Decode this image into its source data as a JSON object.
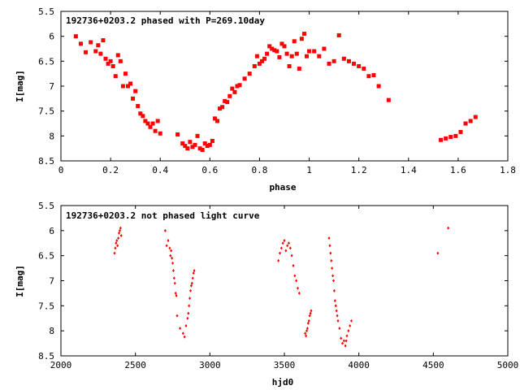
{
  "chart_data": [
    {
      "type": "scatter",
      "title": "192736+0203.2 phased with P=269.10day",
      "xlabel": "phase",
      "ylabel": "I[mag]",
      "xlim": [
        0,
        1.8
      ],
      "ylim": [
        5.5,
        8.5
      ],
      "y_inverted": true,
      "grid": false,
      "legend": "none",
      "marker": "filled-square",
      "color": "#ff0000",
      "xticks": [
        "0",
        "0.2",
        "0.4",
        "0.6",
        "0.8",
        "1",
        "1.2",
        "1.4",
        "1.6",
        "1.8"
      ],
      "yticks": [
        "5.5",
        "6",
        "6.5",
        "7",
        "7.5",
        "8",
        "8.5"
      ],
      "series": [
        {
          "x": [
            0.06,
            0.08,
            0.1,
            0.12,
            0.14,
            0.15,
            0.16,
            0.17,
            0.18,
            0.19,
            0.2,
            0.21,
            0.22,
            0.23,
            0.24,
            0.25,
            0.26,
            0.27,
            0.28,
            0.29,
            0.3,
            0.31,
            0.32,
            0.33,
            0.34,
            0.35,
            0.36,
            0.37,
            0.38,
            0.39,
            0.4,
            0.47,
            0.49,
            0.5,
            0.51,
            0.52,
            0.53,
            0.54,
            0.55,
            0.56,
            0.57,
            0.58,
            0.59,
            0.6,
            0.61,
            0.62,
            0.63,
            0.64,
            0.65,
            0.66,
            0.67,
            0.68,
            0.69,
            0.7,
            0.71,
            0.72,
            0.74,
            0.76,
            0.78,
            0.79,
            0.8,
            0.81,
            0.82,
            0.83,
            0.84,
            0.85,
            0.86,
            0.87,
            0.88,
            0.89,
            0.9,
            0.91,
            0.92,
            0.93,
            0.94,
            0.95,
            0.96,
            0.97,
            0.98,
            0.99,
            1.0,
            1.02,
            1.04,
            1.06,
            1.08,
            1.1,
            1.12,
            1.14,
            1.16,
            1.18,
            1.2,
            1.22,
            1.24,
            1.26,
            1.28,
            1.32,
            1.53,
            1.55,
            1.57,
            1.59,
            1.61,
            1.63,
            1.65,
            1.67
          ],
          "y": [
            6.0,
            6.15,
            6.32,
            6.12,
            6.3,
            6.18,
            6.35,
            6.08,
            6.45,
            6.55,
            6.5,
            6.6,
            6.8,
            6.38,
            6.5,
            7.0,
            6.75,
            7.0,
            6.95,
            7.25,
            7.1,
            7.4,
            7.55,
            7.6,
            7.7,
            7.75,
            7.82,
            7.75,
            7.9,
            7.7,
            7.95,
            7.97,
            8.15,
            8.2,
            8.25,
            8.12,
            8.22,
            8.18,
            8.0,
            8.25,
            8.28,
            8.15,
            8.2,
            8.18,
            8.1,
            7.65,
            7.7,
            7.45,
            7.42,
            7.3,
            7.32,
            7.2,
            7.05,
            7.12,
            7.0,
            6.98,
            6.85,
            6.75,
            6.6,
            6.4,
            6.55,
            6.5,
            6.45,
            6.35,
            6.2,
            6.25,
            6.28,
            6.3,
            6.42,
            6.15,
            6.2,
            6.35,
            6.6,
            6.4,
            6.1,
            6.35,
            6.65,
            6.05,
            5.95,
            6.4,
            6.3,
            6.3,
            6.4,
            6.25,
            6.55,
            6.5,
            5.98,
            6.45,
            6.5,
            6.55,
            6.6,
            6.65,
            6.8,
            6.78,
            7.0,
            7.28,
            8.08,
            8.05,
            8.02,
            8.0,
            7.92,
            7.75,
            7.7,
            7.62
          ]
        }
      ]
    },
    {
      "type": "scatter",
      "title": "192736+0203.2 not phased light curve",
      "xlabel": "hjd0",
      "ylabel": "I[mag]",
      "xlim": [
        2000,
        5000
      ],
      "ylim": [
        5.5,
        8.5
      ],
      "y_inverted": true,
      "grid": false,
      "legend": "none",
      "marker": "small-diamond",
      "color": "#ff0000",
      "xticks": [
        "2000",
        "2500",
        "3000",
        "3500",
        "4000",
        "4500",
        "5000"
      ],
      "yticks": [
        "5.5",
        "6",
        "6.5",
        "7",
        "7.5",
        "8",
        "8.5"
      ],
      "series": [
        {
          "x": [
            2360,
            2365,
            2370,
            2375,
            2380,
            2385,
            2390,
            2395,
            2400,
            2405,
            2700,
            2710,
            2720,
            2730,
            2735,
            2740,
            2745,
            2750,
            2755,
            2760,
            2765,
            2770,
            2775,
            2780,
            2800,
            2820,
            2830,
            2840,
            2850,
            2855,
            2860,
            2865,
            2870,
            2875,
            2880,
            2885,
            2890,
            2895,
            3460,
            3470,
            3480,
            3490,
            3500,
            3510,
            3520,
            3530,
            3540,
            3550,
            3560,
            3570,
            3580,
            3590,
            3600,
            3640,
            3645,
            3650,
            3655,
            3660,
            3665,
            3670,
            3675,
            3680,
            3800,
            3805,
            3810,
            3815,
            3820,
            3825,
            3830,
            3835,
            3840,
            3845,
            3850,
            3855,
            3860,
            3870,
            3880,
            3890,
            3900,
            3910,
            3915,
            3920,
            3930,
            3940,
            3950,
            4530,
            4600
          ],
          "y": [
            6.45,
            6.35,
            6.25,
            6.2,
            6.3,
            6.15,
            6.05,
            6.0,
            5.95,
            6.1,
            6.0,
            6.3,
            6.2,
            6.35,
            6.5,
            6.4,
            6.55,
            6.65,
            6.8,
            6.95,
            7.05,
            7.25,
            7.3,
            7.7,
            7.95,
            8.05,
            8.12,
            7.9,
            7.75,
            7.65,
            7.5,
            7.35,
            7.2,
            7.1,
            7.05,
            6.95,
            6.85,
            6.8,
            6.6,
            6.45,
            6.35,
            6.25,
            6.2,
            6.4,
            6.3,
            6.25,
            6.35,
            6.5,
            6.7,
            6.9,
            7.0,
            7.15,
            7.25,
            8.05,
            8.1,
            8.0,
            7.95,
            7.85,
            7.8,
            7.7,
            7.65,
            7.6,
            6.15,
            6.3,
            6.45,
            6.6,
            6.75,
            6.9,
            7.0,
            7.2,
            7.4,
            7.5,
            7.6,
            7.7,
            7.8,
            7.95,
            8.15,
            8.25,
            8.2,
            8.3,
            8.2,
            8.1,
            8.0,
            7.9,
            7.8,
            6.45,
            5.95
          ]
        }
      ]
    }
  ]
}
